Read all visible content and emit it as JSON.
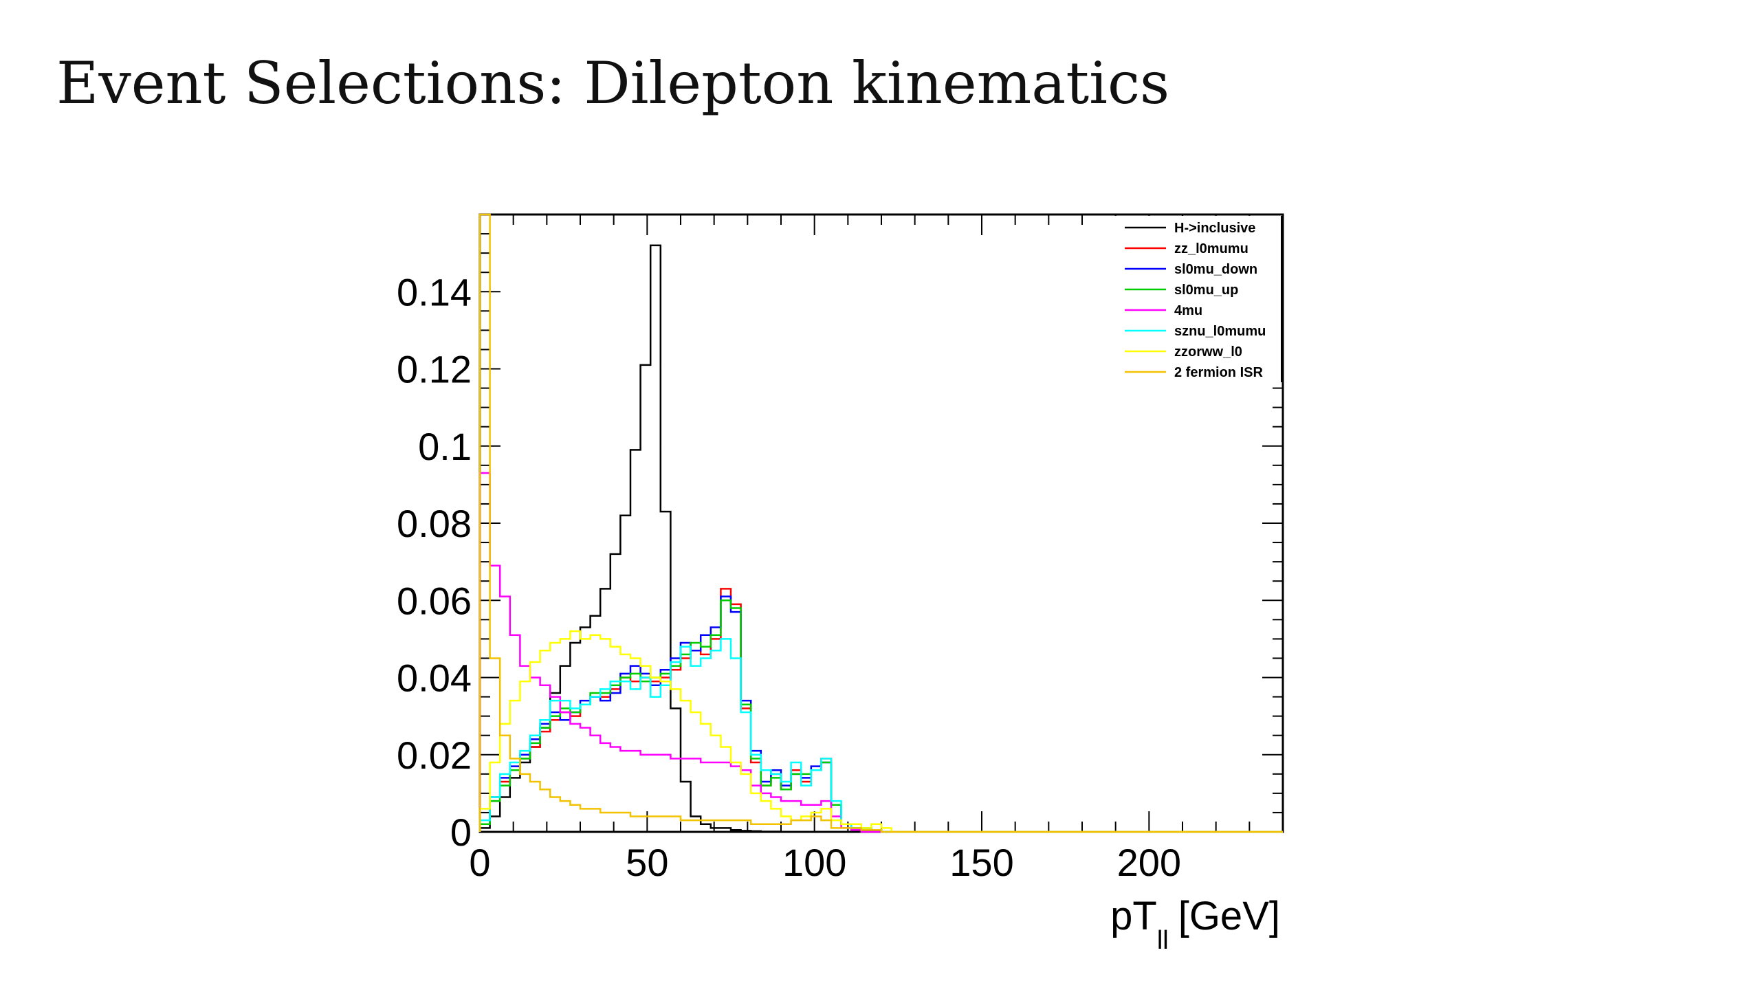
{
  "slide": {
    "title": "Event Selections: Dilepton kinematics"
  },
  "chart_data": {
    "type": "line",
    "subtype": "step-histogram",
    "xlabel": "pT",
    "xlabel_subscript": "ll",
    "xlabel_unit": "[GeV]",
    "ylabel": "",
    "xlim": [
      0,
      240
    ],
    "ylim": [
      0,
      0.16
    ],
    "x_ticks": [
      0,
      50,
      100,
      150,
      200
    ],
    "x_tick_labels": [
      "0",
      "50",
      "100",
      "150",
      "200"
    ],
    "y_ticks": [
      0,
      0.02,
      0.04,
      0.06,
      0.08,
      0.1,
      0.12,
      0.14
    ],
    "y_tick_labels": [
      "0",
      "0.02",
      "0.04",
      "0.06",
      "0.08",
      "0.1",
      "0.12",
      "0.14"
    ],
    "grid": false,
    "legend_position": "top-right",
    "bin_width": 3,
    "series": [
      {
        "name": "H->inclusive",
        "color": "#000000",
        "x": [
          0,
          3,
          6,
          9,
          12,
          15,
          18,
          21,
          24,
          27,
          30,
          33,
          36,
          39,
          42,
          45,
          48,
          51,
          54,
          57,
          60,
          63,
          66,
          69,
          72,
          75,
          78,
          81,
          84,
          87,
          90
        ],
        "y": [
          0.001,
          0.004,
          0.009,
          0.014,
          0.018,
          0.022,
          0.027,
          0.036,
          0.043,
          0.049,
          0.053,
          0.056,
          0.063,
          0.072,
          0.082,
          0.099,
          0.121,
          0.152,
          0.083,
          0.032,
          0.013,
          0.004,
          0.002,
          0.001,
          0.001,
          0.0005,
          0.0003,
          0.0002,
          0.0001,
          0.0001,
          0
        ]
      },
      {
        "name": "zz_l0mumu",
        "color": "#ff0000",
        "x": [
          0,
          3,
          6,
          9,
          12,
          15,
          18,
          21,
          24,
          27,
          30,
          33,
          36,
          39,
          42,
          45,
          48,
          51,
          54,
          57,
          60,
          63,
          66,
          69,
          72,
          75,
          78,
          81,
          84,
          87,
          90,
          93,
          96,
          99,
          102,
          105,
          108,
          111,
          114,
          117
        ],
        "y": [
          0.002,
          0.008,
          0.013,
          0.016,
          0.019,
          0.022,
          0.026,
          0.029,
          0.031,
          0.03,
          0.033,
          0.035,
          0.035,
          0.037,
          0.04,
          0.039,
          0.04,
          0.039,
          0.04,
          0.042,
          0.045,
          0.047,
          0.046,
          0.05,
          0.063,
          0.059,
          0.032,
          0.018,
          0.012,
          0.015,
          0.011,
          0.016,
          0.013,
          0.016,
          0.019,
          0.007,
          0.002,
          0.001,
          0.001,
          0.0005
        ]
      },
      {
        "name": "sl0mu_down",
        "color": "#0000ff",
        "x": [
          0,
          3,
          6,
          9,
          12,
          15,
          18,
          21,
          24,
          27,
          30,
          33,
          36,
          39,
          42,
          45,
          48,
          51,
          54,
          57,
          60,
          63,
          66,
          69,
          72,
          75,
          78,
          81,
          84,
          87,
          90,
          93,
          96,
          99,
          102,
          105,
          108,
          111,
          114,
          117
        ],
        "y": [
          0.002,
          0.009,
          0.014,
          0.017,
          0.02,
          0.024,
          0.028,
          0.031,
          0.029,
          0.031,
          0.034,
          0.035,
          0.034,
          0.036,
          0.041,
          0.043,
          0.041,
          0.038,
          0.042,
          0.045,
          0.049,
          0.047,
          0.051,
          0.053,
          0.061,
          0.057,
          0.034,
          0.021,
          0.013,
          0.016,
          0.012,
          0.015,
          0.014,
          0.017,
          0.018,
          0.007,
          0.002,
          0.001,
          0.001,
          0.0005
        ]
      },
      {
        "name": "sl0mu_up",
        "color": "#00cc00",
        "x": [
          0,
          3,
          6,
          9,
          12,
          15,
          18,
          21,
          24,
          27,
          30,
          33,
          36,
          39,
          42,
          45,
          48,
          51,
          54,
          57,
          60,
          63,
          66,
          69,
          72,
          75,
          78,
          81,
          84,
          87,
          90,
          93,
          96,
          99,
          102,
          105,
          108,
          111,
          114,
          117
        ],
        "y": [
          0.002,
          0.008,
          0.012,
          0.016,
          0.019,
          0.023,
          0.027,
          0.03,
          0.032,
          0.031,
          0.033,
          0.036,
          0.036,
          0.038,
          0.04,
          0.041,
          0.039,
          0.04,
          0.041,
          0.043,
          0.046,
          0.049,
          0.048,
          0.051,
          0.06,
          0.058,
          0.033,
          0.019,
          0.012,
          0.014,
          0.011,
          0.015,
          0.015,
          0.016,
          0.018,
          0.007,
          0.002,
          0.001,
          0.001,
          0.0005
        ]
      },
      {
        "name": "4mu",
        "color": "#ff00ff",
        "x": [
          0,
          3,
          6,
          9,
          12,
          15,
          18,
          21,
          24,
          27,
          30,
          33,
          36,
          39,
          42,
          45,
          48,
          51,
          54,
          57,
          60,
          63,
          66,
          69,
          72,
          75,
          78,
          81,
          84,
          87,
          90,
          93,
          96,
          99,
          102,
          105,
          108,
          111
        ],
        "y": [
          0.093,
          0.069,
          0.061,
          0.051,
          0.043,
          0.04,
          0.038,
          0.035,
          0.031,
          0.028,
          0.027,
          0.025,
          0.023,
          0.022,
          0.021,
          0.021,
          0.02,
          0.02,
          0.02,
          0.019,
          0.019,
          0.019,
          0.018,
          0.018,
          0.018,
          0.017,
          0.016,
          0.012,
          0.01,
          0.009,
          0.008,
          0.008,
          0.007,
          0.007,
          0.008,
          0.004,
          0.001,
          0.0005
        ]
      },
      {
        "name": "sznu_l0mumu",
        "color": "#00ffff",
        "x": [
          0,
          3,
          6,
          9,
          12,
          15,
          18,
          21,
          24,
          27,
          30,
          33,
          36,
          39,
          42,
          45,
          48,
          51,
          54,
          57,
          60,
          63,
          66,
          69,
          72,
          75,
          78,
          81,
          84,
          87,
          90,
          93,
          96,
          99,
          102,
          105,
          108,
          111,
          114,
          117
        ],
        "y": [
          0.003,
          0.009,
          0.015,
          0.018,
          0.021,
          0.025,
          0.029,
          0.034,
          0.034,
          0.032,
          0.033,
          0.035,
          0.037,
          0.039,
          0.039,
          0.037,
          0.04,
          0.035,
          0.038,
          0.044,
          0.048,
          0.043,
          0.045,
          0.047,
          0.05,
          0.045,
          0.031,
          0.02,
          0.016,
          0.015,
          0.013,
          0.018,
          0.012,
          0.016,
          0.019,
          0.008,
          0.002,
          0.001,
          0.001,
          0.0005
        ]
      },
      {
        "name": "zzorww_l0",
        "color": "#ffff00",
        "x": [
          0,
          3,
          6,
          9,
          12,
          15,
          18,
          21,
          24,
          27,
          30,
          33,
          36,
          39,
          42,
          45,
          48,
          51,
          54,
          57,
          60,
          63,
          66,
          69,
          72,
          75,
          78,
          81,
          84,
          87,
          90,
          93,
          96,
          99,
          102,
          105,
          108,
          111,
          114,
          117,
          120
        ],
        "y": [
          0.006,
          0.018,
          0.028,
          0.034,
          0.039,
          0.044,
          0.047,
          0.049,
          0.05,
          0.052,
          0.05,
          0.051,
          0.05,
          0.048,
          0.046,
          0.045,
          0.043,
          0.04,
          0.039,
          0.037,
          0.034,
          0.031,
          0.028,
          0.025,
          0.022,
          0.018,
          0.015,
          0.01,
          0.008,
          0.006,
          0.004,
          0.003,
          0.004,
          0.005,
          0.006,
          0.003,
          0.002,
          0.002,
          0.001,
          0.002,
          0.001
        ]
      },
      {
        "name": "2 fermion ISR",
        "color": "#f2c200",
        "x": [
          0,
          3,
          6,
          9,
          12,
          15,
          18,
          21,
          24,
          27,
          30,
          33,
          36,
          39,
          42,
          45,
          48,
          51,
          54,
          57,
          60,
          63,
          66,
          69,
          72,
          75,
          78,
          81,
          84,
          87,
          90,
          93,
          96,
          99,
          102,
          105,
          108,
          111,
          114,
          117
        ],
        "y": [
          0.16,
          0.045,
          0.025,
          0.019,
          0.015,
          0.013,
          0.011,
          0.009,
          0.008,
          0.007,
          0.006,
          0.006,
          0.005,
          0.005,
          0.005,
          0.004,
          0.004,
          0.004,
          0.004,
          0.004,
          0.003,
          0.003,
          0.003,
          0.003,
          0.003,
          0.003,
          0.003,
          0.002,
          0.002,
          0.002,
          0.002,
          0.003,
          0.003,
          0.004,
          0.003,
          0.001,
          0.001,
          0.001,
          0.0005,
          0.0005
        ]
      }
    ]
  }
}
